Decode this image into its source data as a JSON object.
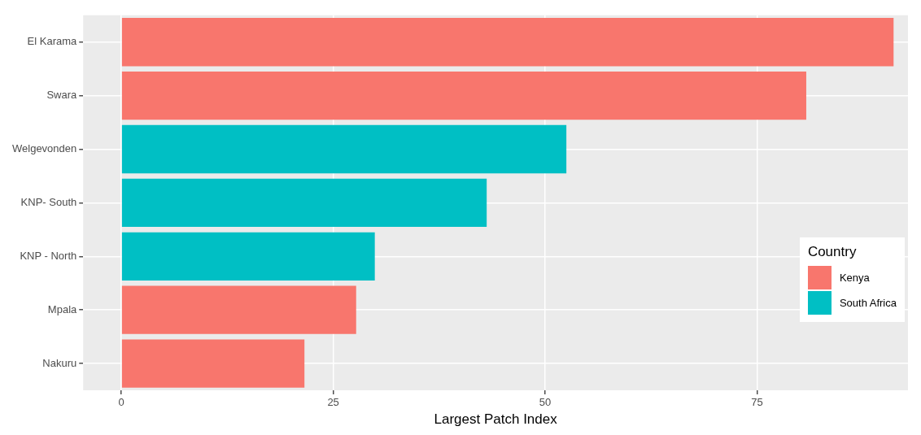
{
  "chart_data": {
    "type": "bar",
    "orientation": "horizontal",
    "categories": [
      "El Karama",
      "Swara",
      "Welgevonden",
      "KNP- South",
      "KNP - North",
      "Mpala",
      "Nakuru"
    ],
    "series": [
      {
        "name": "Kenya",
        "color": "#f8766d",
        "values": [
          91.1,
          80.8,
          null,
          null,
          null,
          27.7,
          21.6
        ]
      },
      {
        "name": "South Africa",
        "color": "#00bfc4",
        "values": [
          null,
          null,
          52.5,
          43.1,
          29.9,
          null,
          null
        ]
      }
    ],
    "xlabel": "Largest Patch Index",
    "xlim": [
      -4.5,
      92.8
    ],
    "xticks": [
      0,
      25,
      50,
      75
    ],
    "grid": true,
    "legend": "right",
    "legend_title": "Country"
  }
}
